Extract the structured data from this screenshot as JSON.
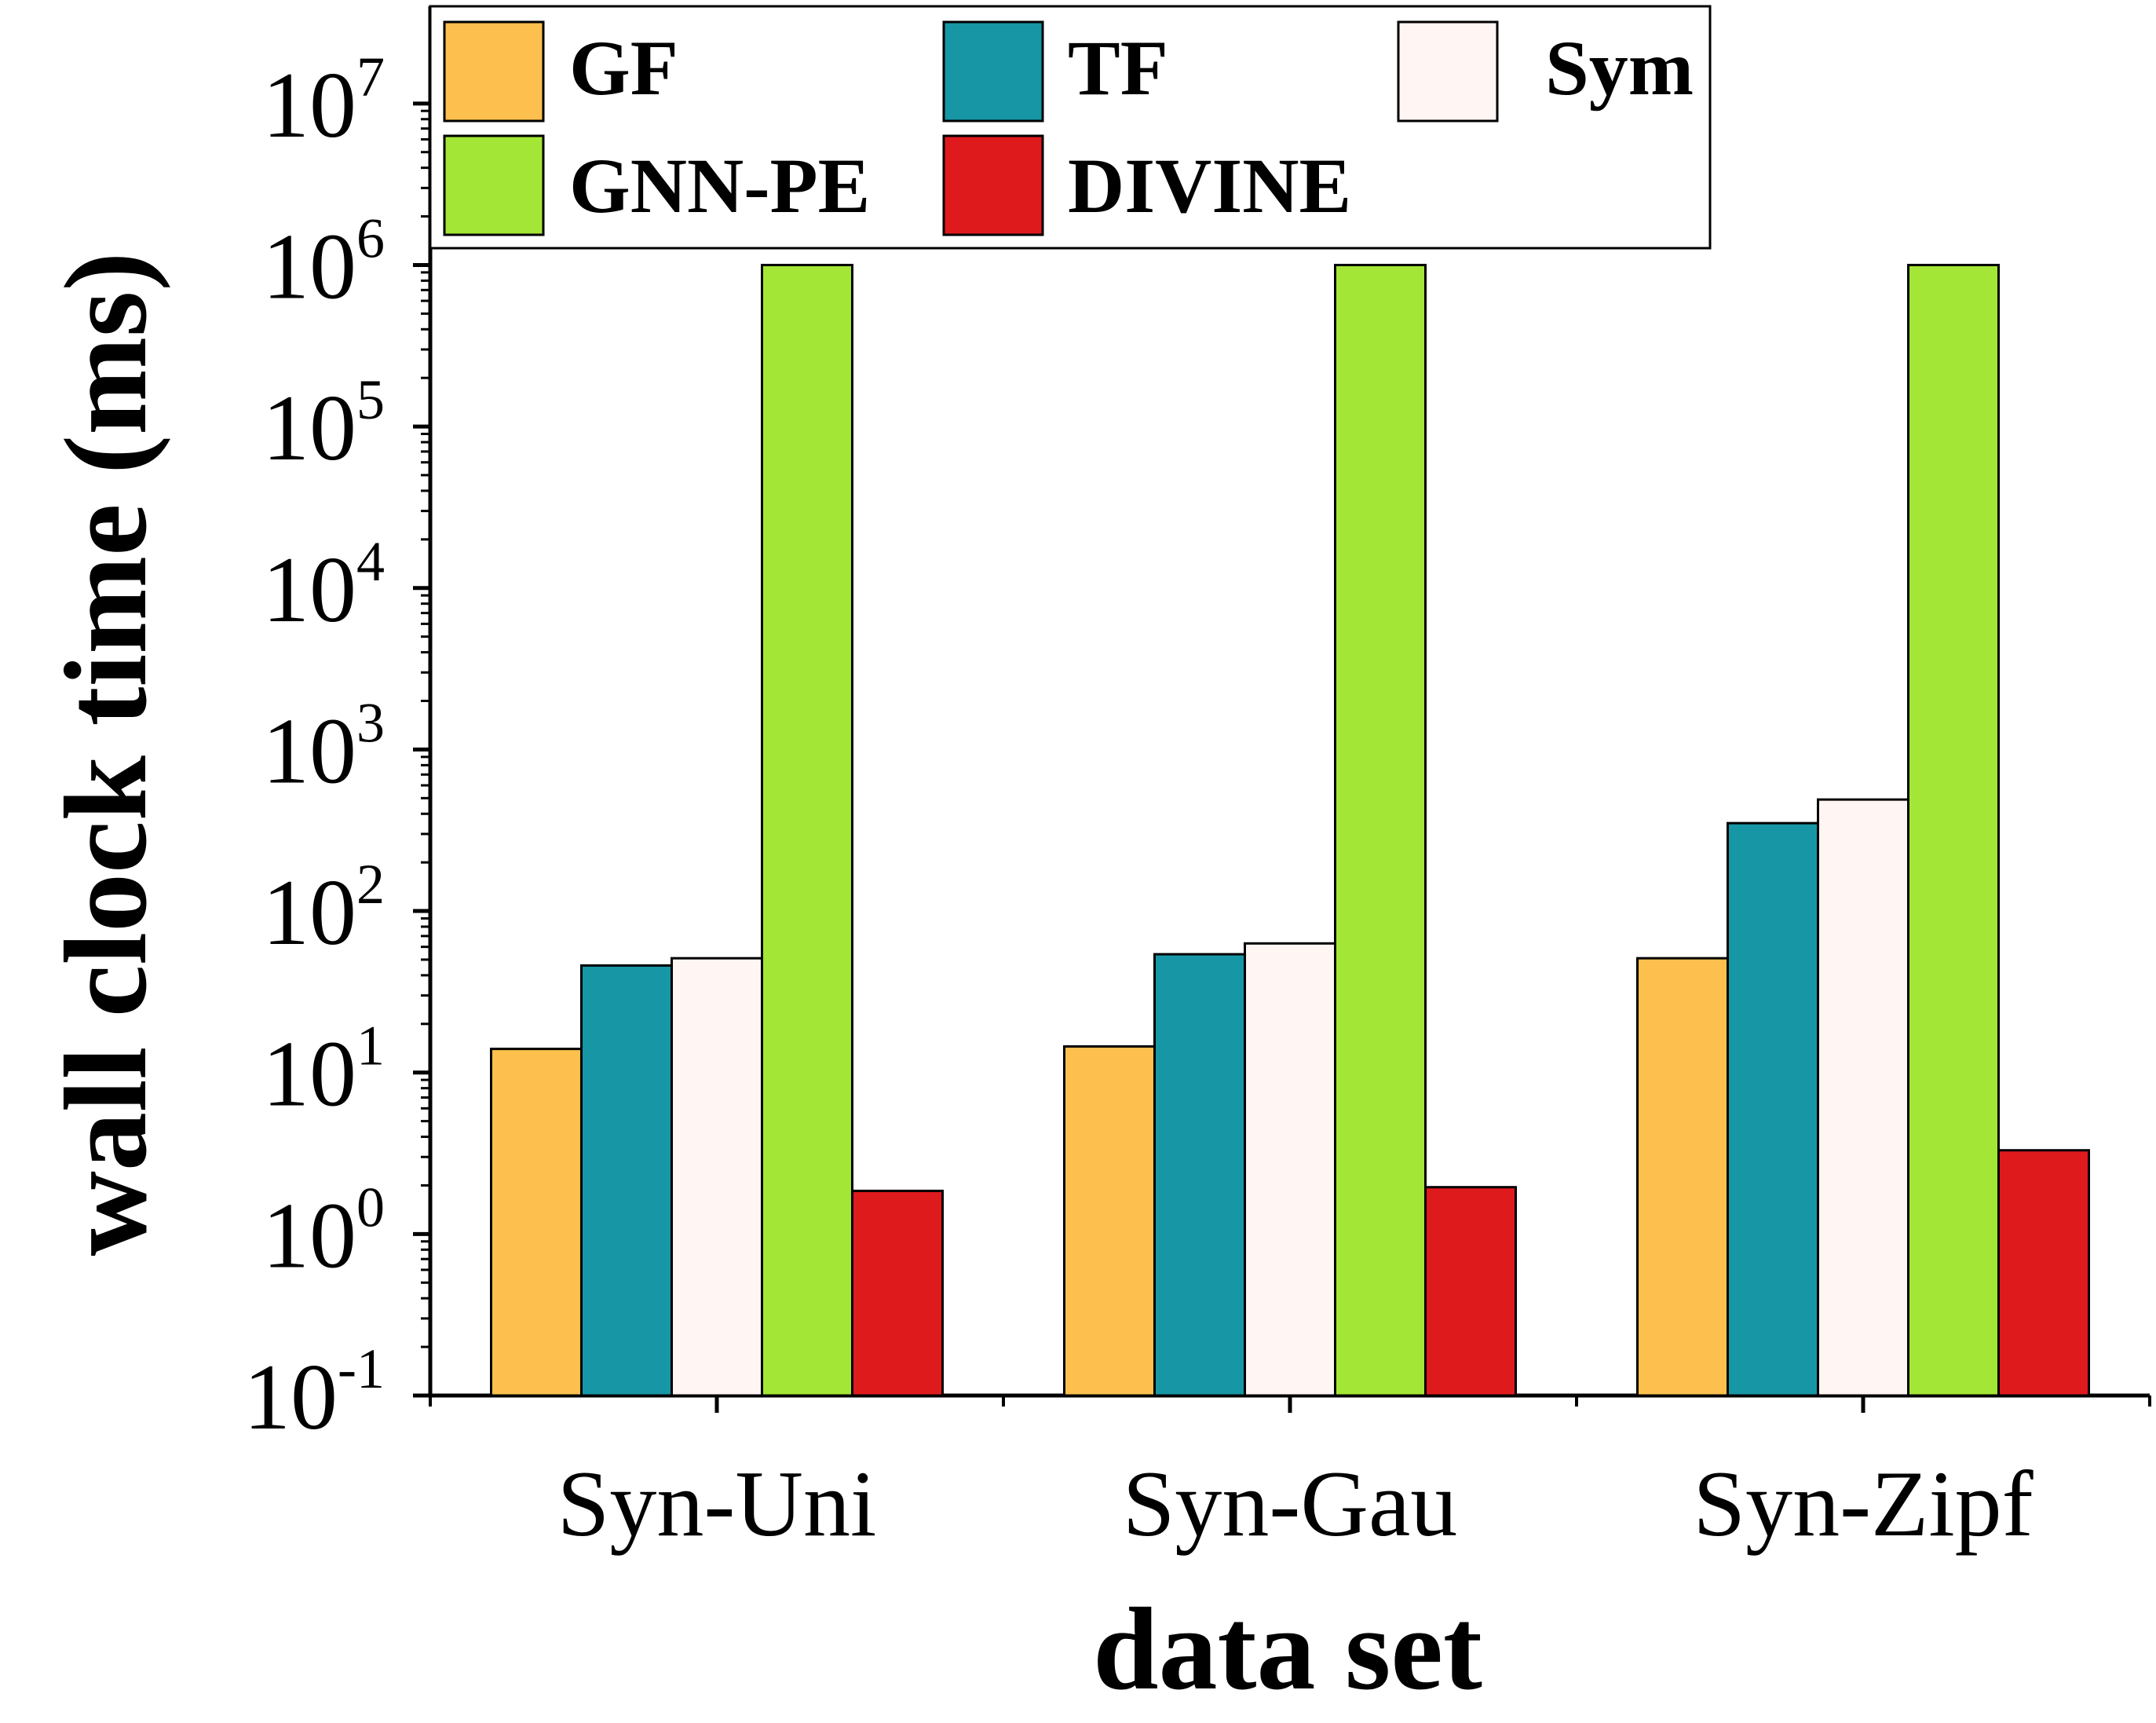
{
  "chart_data": {
    "type": "bar",
    "xlabel": "data set",
    "ylabel": "wall clock time (ms)",
    "yscale": "log",
    "ylim": [
      0.1,
      40000000
    ],
    "yticks": [
      {
        "value": 0.1,
        "base": "10",
        "exp": "-1"
      },
      {
        "value": 1,
        "base": "10",
        "exp": "0"
      },
      {
        "value": 10,
        "base": "10",
        "exp": "1"
      },
      {
        "value": 100,
        "base": "10",
        "exp": "2"
      },
      {
        "value": 1000,
        "base": "10",
        "exp": "3"
      },
      {
        "value": 10000,
        "base": "10",
        "exp": "4"
      },
      {
        "value": 100000,
        "base": "10",
        "exp": "5"
      },
      {
        "value": 1000000,
        "base": "10",
        "exp": "6"
      },
      {
        "value": 10000000,
        "base": "10",
        "exp": "7"
      }
    ],
    "categories": [
      "Syn-Uni",
      "Syn-Gau",
      "Syn-Zipf"
    ],
    "series": [
      {
        "name": "GF",
        "color": "#fdc04e",
        "values": [
          14,
          14.5,
          51
        ]
      },
      {
        "name": "TF",
        "color": "#1796a5",
        "values": [
          46,
          54,
          350
        ]
      },
      {
        "name": "Sym",
        "color": "#fff5f2",
        "values": [
          51,
          63,
          490
        ]
      },
      {
        "name": "GNN-PE",
        "color": "#a3e635",
        "values": [
          1000000,
          1000000,
          1000000
        ]
      },
      {
        "name": "DIVINE",
        "color": "#df1a1d",
        "values": [
          1.85,
          1.95,
          3.3
        ]
      }
    ],
    "legend_position": "top",
    "grid": false
  }
}
